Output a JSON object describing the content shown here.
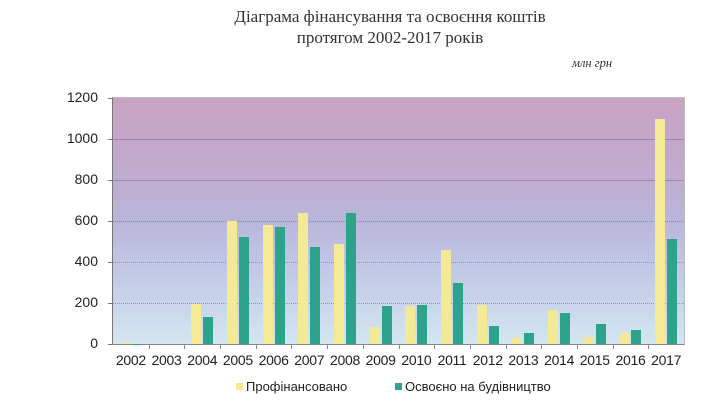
{
  "chart_data": {
    "type": "bar",
    "title": "Діаграма фінансування та освоєння коштів протягом 2002-2017 років",
    "title_lines": [
      "Діаграма фінансування та освоєння коштів",
      "протягом 2002-2017 років"
    ],
    "unit": "млн грн",
    "xlabel": "",
    "ylabel": "",
    "ylim": [
      0,
      1200
    ],
    "yticks": [
      0,
      200,
      400,
      600,
      800,
      1000,
      1200
    ],
    "categories": [
      "2002",
      "2003",
      "2004",
      "2005",
      "2006",
      "2007",
      "2008",
      "2009",
      "2010",
      "2011",
      "2012",
      "2013",
      "2014",
      "2015",
      "2016",
      "2017"
    ],
    "series": [
      {
        "name": "Профінансовано",
        "color": "#f4ea95",
        "values": [
          3,
          0,
          195,
          600,
          580,
          640,
          490,
          85,
          185,
          460,
          190,
          30,
          165,
          35,
          55,
          1100
        ]
      },
      {
        "name": "Освоєно на будівництво",
        "color": "#2ea38c",
        "values": [
          2,
          0,
          130,
          520,
          570,
          475,
          640,
          185,
          188,
          300,
          90,
          55,
          150,
          100,
          70,
          510
        ]
      }
    ],
    "grid": true,
    "legend_position": "bottom"
  }
}
